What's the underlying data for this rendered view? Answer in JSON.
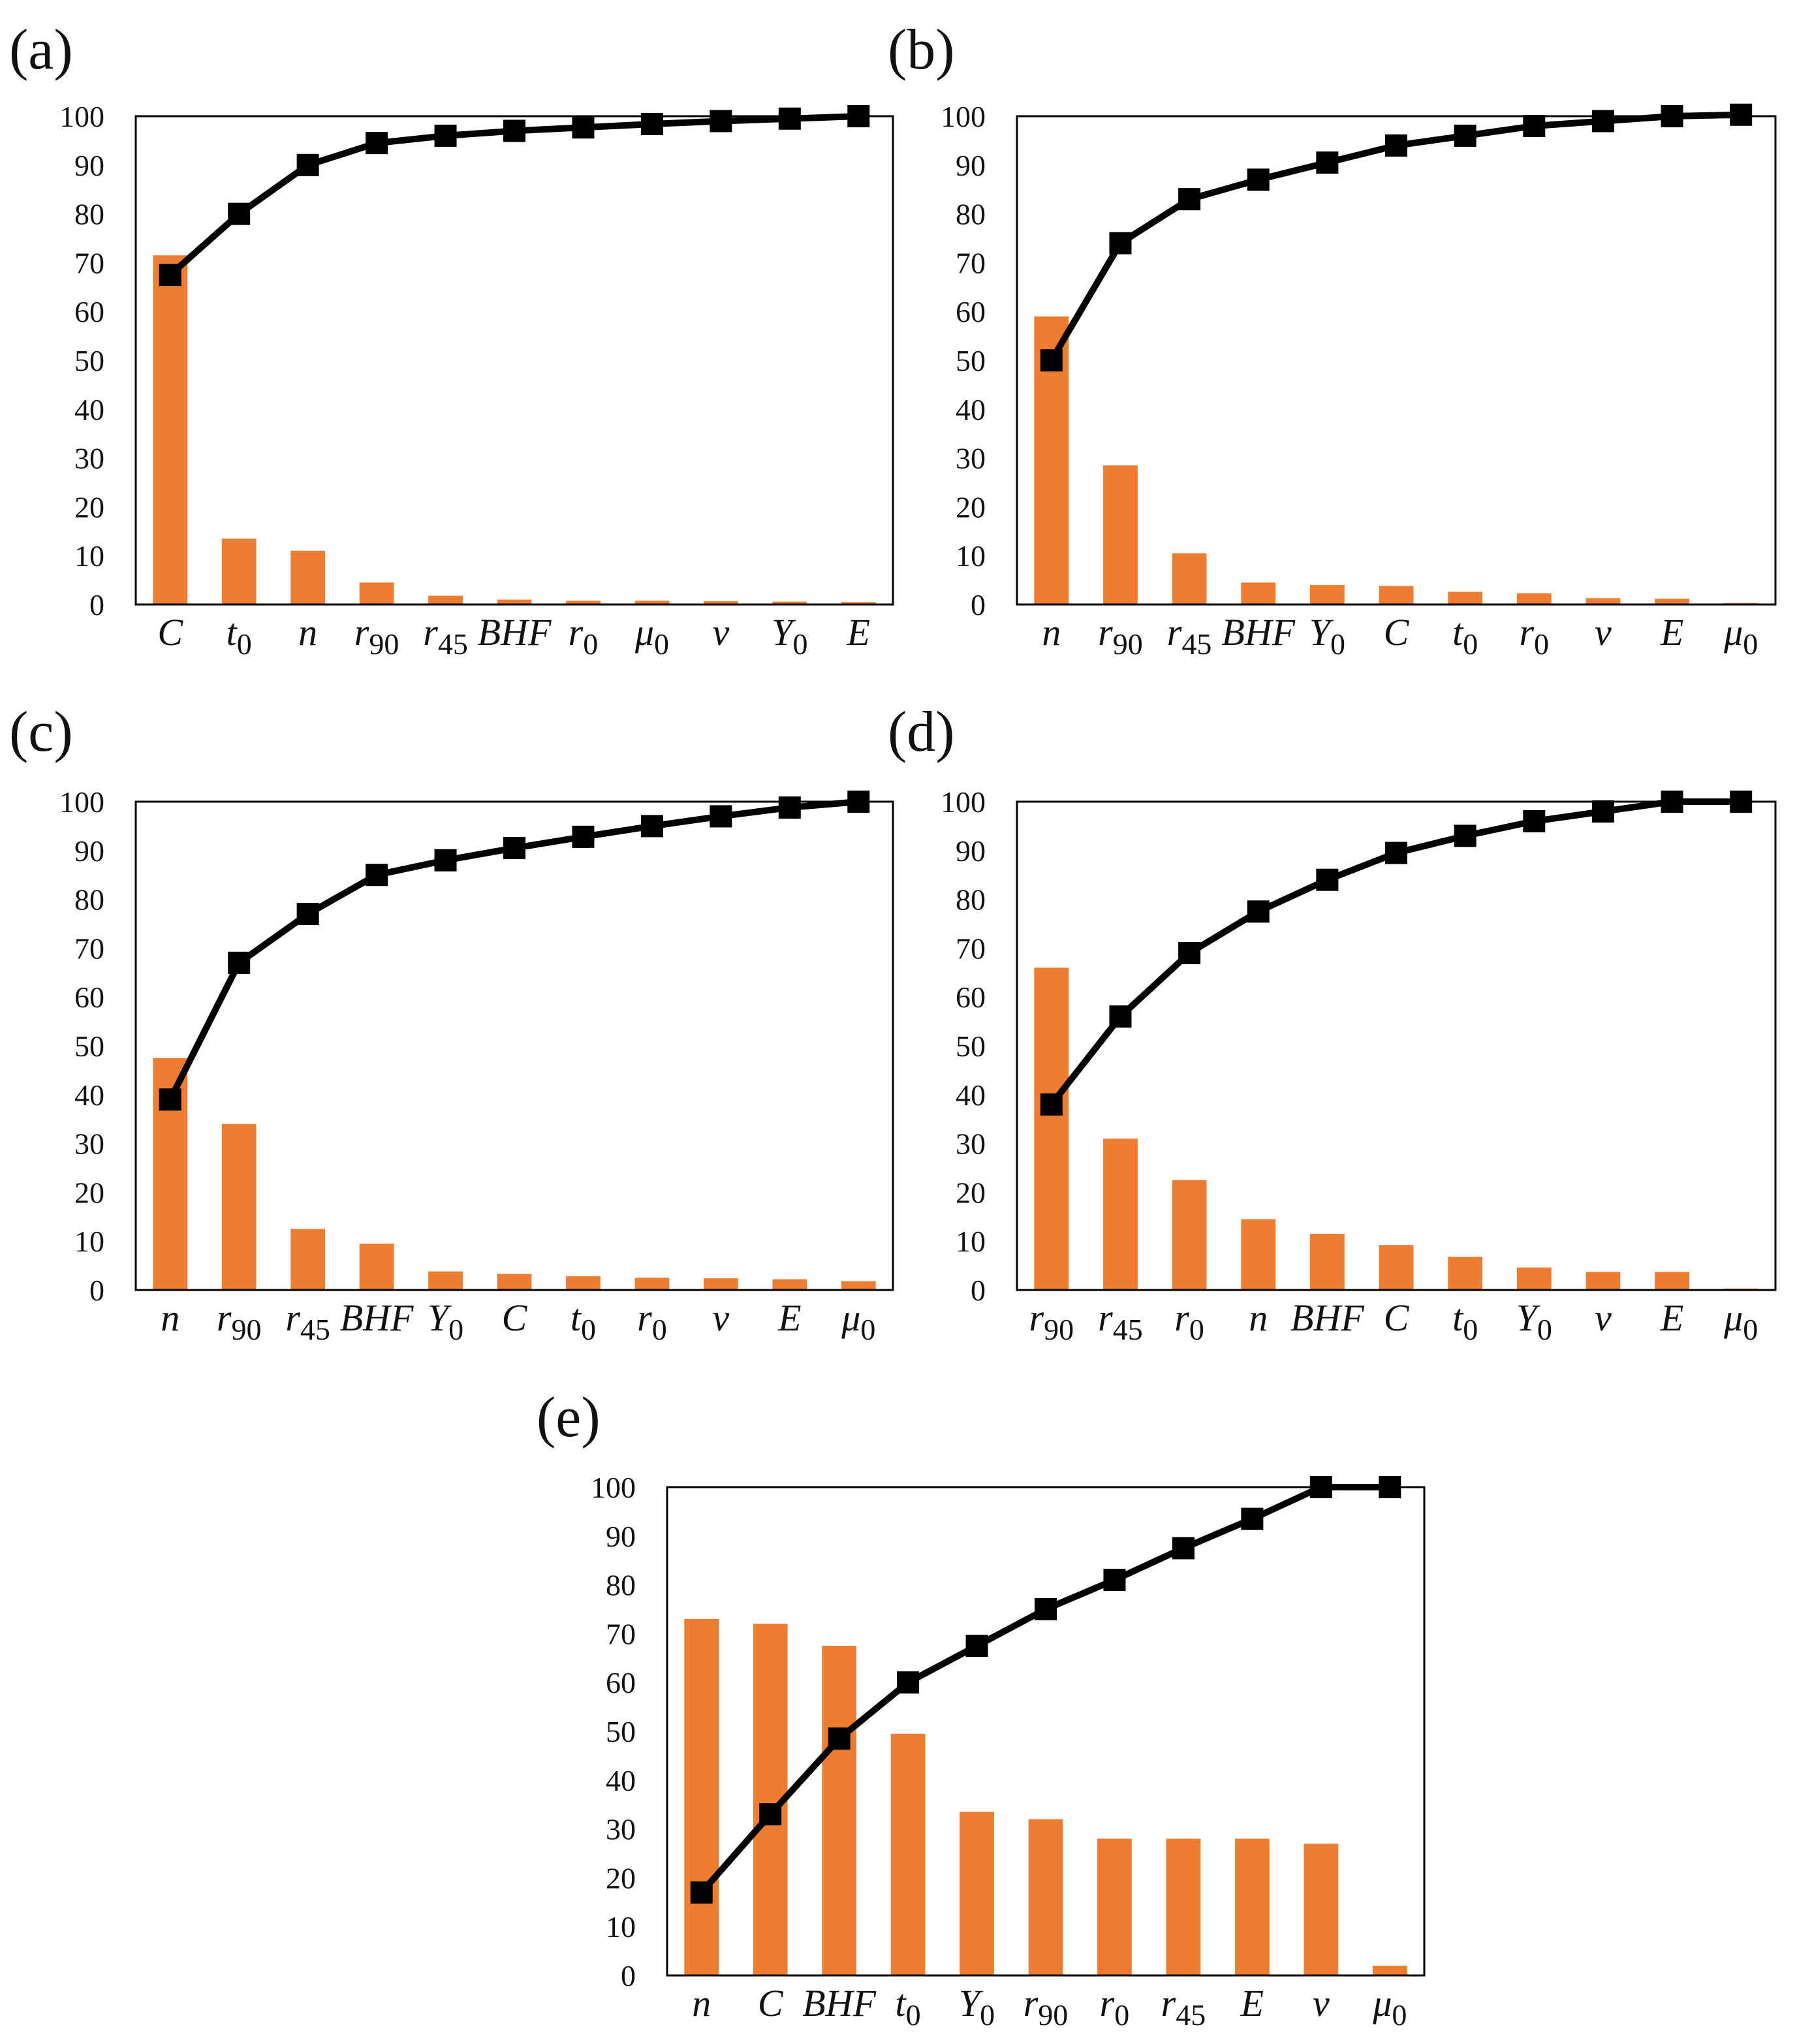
{
  "colors": {
    "bar": "#ED7D31",
    "line": "#000000",
    "axis": "#000000"
  },
  "chart_data": [
    {
      "type": "bar",
      "panel": "(a)",
      "categories": [
        "C",
        "t_0",
        "n",
        "r_90",
        "r_45",
        "BHF",
        "r_0",
        "μ_0",
        "v",
        "Y_0",
        "E"
      ],
      "series": [
        {
          "name": "bar",
          "values": [
            71.5,
            13.5,
            11,
            4.5,
            1.8,
            1,
            0.8,
            0.8,
            0.7,
            0.6,
            0.5
          ]
        },
        {
          "name": "cumulative",
          "values": [
            67.5,
            80,
            90,
            94.5,
            96,
            97,
            97.7,
            98.4,
            99,
            99.5,
            100
          ]
        }
      ],
      "ylim": [
        0,
        100
      ],
      "yticks": [
        "0",
        "10",
        "20",
        "30",
        "40",
        "50",
        "60",
        "70",
        "80",
        "90",
        "100"
      ]
    },
    {
      "type": "bar",
      "panel": "(b)",
      "categories": [
        "n",
        "r_90",
        "r_45",
        "BHF",
        "Y_0",
        "C",
        "t_0",
        "r_0",
        "v",
        "E",
        "μ_0"
      ],
      "series": [
        {
          "name": "bar",
          "values": [
            59,
            28.5,
            10.5,
            4.5,
            4,
            3.8,
            2.6,
            2.3,
            1.3,
            1.2,
            0.3
          ]
        },
        {
          "name": "cumulative",
          "values": [
            50,
            74,
            83,
            87,
            90.5,
            94,
            96,
            98,
            99,
            100,
            100.3
          ]
        }
      ],
      "ylim": [
        0,
        100
      ],
      "yticks": [
        "0",
        "10",
        "20",
        "30",
        "40",
        "50",
        "60",
        "70",
        "80",
        "90",
        "100"
      ]
    },
    {
      "type": "bar",
      "panel": "(c)",
      "categories": [
        "n",
        "r_90",
        "r_45",
        "BHF",
        "Y_0",
        "C",
        "t_0",
        "r_0",
        "v",
        "E",
        "μ_0"
      ],
      "series": [
        {
          "name": "bar",
          "values": [
            47.5,
            34,
            12.5,
            9.5,
            3.8,
            3.3,
            2.8,
            2.5,
            2.4,
            2.2,
            1.8
          ]
        },
        {
          "name": "cumulative",
          "values": [
            39,
            67,
            77,
            85,
            88,
            90.5,
            92.8,
            95,
            97,
            98.8,
            100
          ]
        }
      ],
      "ylim": [
        0,
        100
      ],
      "yticks": [
        "0",
        "10",
        "20",
        "30",
        "40",
        "50",
        "60",
        "70",
        "80",
        "90",
        "100"
      ]
    },
    {
      "type": "bar",
      "panel": "(d)",
      "categories": [
        "r_90",
        "r_45",
        "r_0",
        "n",
        "BHF",
        "C",
        "t_0",
        "Y_0",
        "v",
        "E",
        "μ_0"
      ],
      "series": [
        {
          "name": "bar",
          "values": [
            66,
            31,
            22.5,
            14.5,
            11.5,
            9.2,
            6.8,
            4.6,
            3.7,
            3.7,
            0.3
          ]
        },
        {
          "name": "cumulative",
          "values": [
            38,
            56,
            69,
            77.5,
            84,
            89.5,
            93,
            96,
            98,
            100,
            100
          ]
        }
      ],
      "ylim": [
        0,
        100
      ],
      "yticks": [
        "0",
        "10",
        "20",
        "30",
        "40",
        "50",
        "60",
        "70",
        "80",
        "90",
        "100"
      ]
    },
    {
      "type": "bar",
      "panel": "(e)",
      "categories": [
        "n",
        "C",
        "BHF",
        "t_0",
        "Y_0",
        "r_90",
        "r_0",
        "r_45",
        "E",
        "v",
        "μ_0"
      ],
      "series": [
        {
          "name": "bar",
          "values": [
            73,
            72,
            67.5,
            49.5,
            33.5,
            32,
            28,
            28,
            28,
            27,
            2
          ]
        },
        {
          "name": "cumulative",
          "values": [
            17,
            33,
            48.5,
            60,
            67.5,
            75,
            81,
            87.5,
            93.5,
            100,
            100
          ]
        }
      ],
      "ylim": [
        0,
        100
      ],
      "yticks": [
        "0",
        "10",
        "20",
        "30",
        "40",
        "50",
        "60",
        "70",
        "80",
        "90",
        "100"
      ]
    }
  ]
}
